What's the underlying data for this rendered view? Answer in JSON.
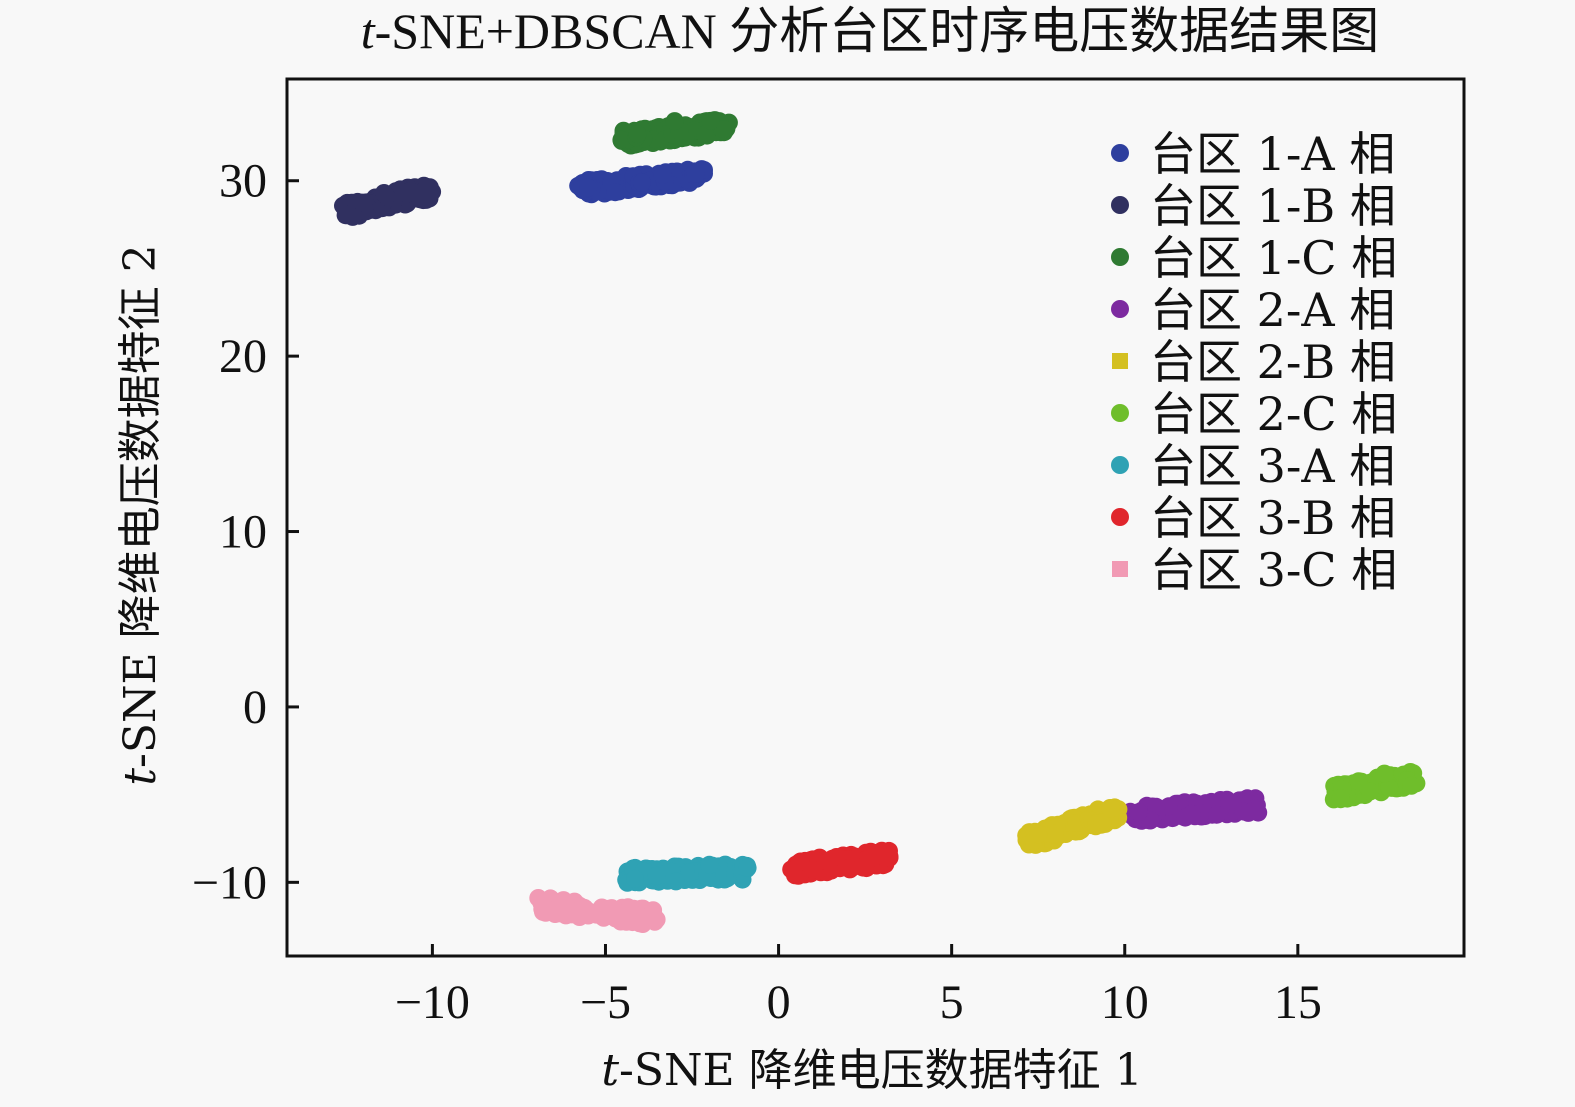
{
  "chart_data": {
    "type": "scatter",
    "title_prefix": "t",
    "title_rest": "-SNE+DBSCAN 分析台区时序电压数据结果图",
    "xlabel_prefix": "t",
    "xlabel_rest": "-SNE 降维电压数据特征 1",
    "ylabel_prefix": "t",
    "ylabel_rest": "-SNE 降维电压数据特征 2",
    "xlim": [
      -14.2,
      19.8
    ],
    "ylim": [
      -14.2,
      35.8
    ],
    "xticks": [
      -10,
      -5,
      0,
      5,
      10,
      15
    ],
    "yticks": [
      -10,
      0,
      10,
      20,
      30
    ],
    "xtick_labels": [
      "−10",
      "−5",
      "0",
      "5",
      "10",
      "15"
    ],
    "ytick_labels": [
      "−10",
      "0",
      "10",
      "20",
      "30"
    ],
    "grid": false,
    "legend_position": "upper right",
    "series": [
      {
        "name": "台区 1-A 相",
        "color": "#2e3f9e",
        "marker": "circle",
        "x_range": [
          -5.7,
          -2.2
        ],
        "y_center": [
          29.6,
          30.3
        ],
        "extra": [
          [
            -2.4,
            30.4
          ],
          [
            -5.5,
            29.6
          ]
        ]
      },
      {
        "name": "台区 1-B 相",
        "color": "#303060",
        "marker": "circle",
        "x_range": [
          -12.5,
          -10.1
        ],
        "y_center": [
          28.3,
          29.4
        ],
        "extra": [
          [
            -10.2,
            29.5
          ]
        ]
      },
      {
        "name": "台区 1-C 相",
        "color": "#2f7a32",
        "marker": "circle",
        "x_range": [
          -4.5,
          -1.5
        ],
        "y_center": [
          32.4,
          33.1
        ],
        "extra": [
          [
            -3.0,
            33.4
          ]
        ]
      },
      {
        "name": "台区 2-A 相",
        "color": "#7d2aa0",
        "marker": "circle",
        "x_range": [
          10.2,
          13.8
        ],
        "y_center": [
          -6.1,
          -5.6
        ],
        "extra": [
          [
            13.8,
            -5.9
          ],
          [
            10.4,
            -6.0
          ]
        ]
      },
      {
        "name": "台区 2-B 相",
        "color": "#d4c021",
        "marker": "square",
        "x_range": [
          7.2,
          9.8
        ],
        "y_center": [
          -7.6,
          -6.0
        ],
        "extra": [
          [
            9.6,
            -5.8
          ]
        ]
      },
      {
        "name": "台区 2-C 相",
        "color": "#6fbe2b",
        "marker": "circle",
        "x_range": [
          16.1,
          18.4
        ],
        "y_center": [
          -4.9,
          -4.1
        ],
        "extra": [
          [
            17.5,
            -3.8
          ]
        ]
      },
      {
        "name": "台区 3-A 相",
        "color": "#2fa2b4",
        "marker": "circle",
        "x_range": [
          -4.4,
          -0.9
        ],
        "y_center": [
          -9.6,
          -9.4
        ],
        "extra": [
          [
            -2.0,
            -9.0
          ]
        ]
      },
      {
        "name": "台区 3-B 相",
        "color": "#e0262c",
        "marker": "circle",
        "x_range": [
          0.4,
          3.1
        ],
        "y_center": [
          -9.2,
          -8.6
        ],
        "extra": [
          [
            2.8,
            -8.5
          ]
        ]
      },
      {
        "name": "台区 3-C 相",
        "color": "#f19ab4",
        "marker": "square",
        "x_range": [
          -6.9,
          -3.6
        ],
        "y_center": [
          -11.3,
          -12.0
        ],
        "extra": [
          [
            -3.8,
            -12.0
          ]
        ]
      }
    ]
  }
}
